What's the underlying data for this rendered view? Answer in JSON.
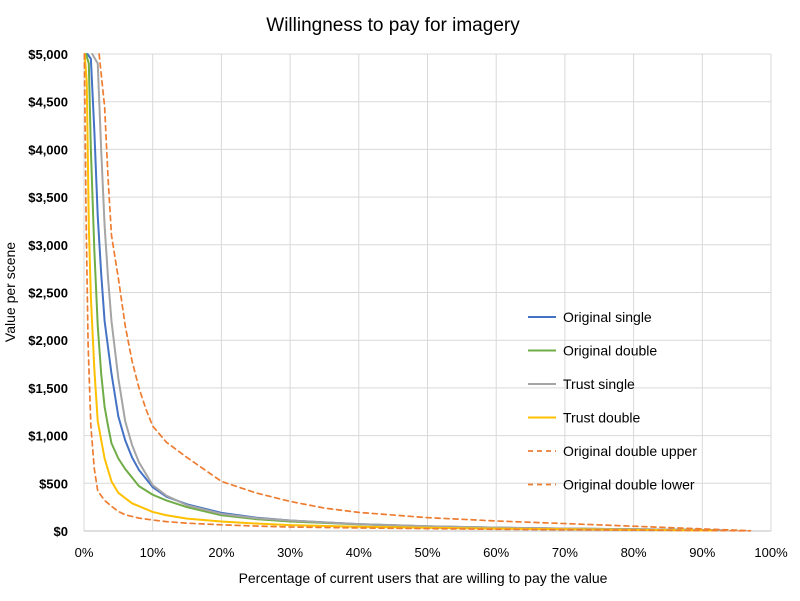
{
  "chart_data": {
    "type": "line",
    "title": "Willingness to pay for imagery",
    "xlabel": "Percentage of current users that are willing to pay the value",
    "ylabel": "Value per scene",
    "xlim": [
      0,
      100
    ],
    "ylim": [
      0,
      5000
    ],
    "x_ticks": [
      "0%",
      "10%",
      "20%",
      "30%",
      "40%",
      "50%",
      "60%",
      "70%",
      "80%",
      "90%",
      "100%"
    ],
    "y_ticks": [
      "$0",
      "$500",
      "$1,000",
      "$1,500",
      "$2,000",
      "$2,500",
      "$3,000",
      "$3,500",
      "$4,000",
      "$4,500",
      "$5,000"
    ],
    "grid": true,
    "legend_position": "right",
    "series": [
      {
        "name": "Original single",
        "color": "#4472C4",
        "dash": "solid",
        "points": [
          [
            0.5,
            5000
          ],
          [
            1,
            4950
          ],
          [
            1.5,
            4200
          ],
          [
            2,
            3300
          ],
          [
            2.5,
            2700
          ],
          [
            3,
            2200
          ],
          [
            4,
            1650
          ],
          [
            5,
            1200
          ],
          [
            6,
            950
          ],
          [
            7,
            770
          ],
          [
            8,
            640
          ],
          [
            10,
            460
          ],
          [
            12,
            360
          ],
          [
            15,
            280
          ],
          [
            20,
            190
          ],
          [
            25,
            140
          ],
          [
            30,
            110
          ],
          [
            35,
            90
          ],
          [
            40,
            72
          ],
          [
            50,
            48
          ],
          [
            60,
            35
          ],
          [
            70,
            25
          ],
          [
            80,
            18
          ],
          [
            90,
            10
          ],
          [
            92,
            6
          ]
        ]
      },
      {
        "name": "Original double",
        "color": "#70AD47",
        "dash": "solid",
        "points": [
          [
            0.3,
            5000
          ],
          [
            0.7,
            4900
          ],
          [
            1,
            4000
          ],
          [
            1.5,
            2950
          ],
          [
            2,
            2150
          ],
          [
            2.5,
            1650
          ],
          [
            3,
            1300
          ],
          [
            3.5,
            1100
          ],
          [
            4,
            920
          ],
          [
            5,
            760
          ],
          [
            6,
            650
          ],
          [
            8,
            470
          ],
          [
            10,
            380
          ],
          [
            12,
            320
          ],
          [
            15,
            250
          ],
          [
            20,
            165
          ],
          [
            25,
            125
          ],
          [
            30,
            100
          ],
          [
            35,
            85
          ],
          [
            40,
            70
          ],
          [
            50,
            48
          ],
          [
            60,
            35
          ],
          [
            70,
            25
          ],
          [
            80,
            18
          ],
          [
            90,
            10
          ],
          [
            92,
            6
          ]
        ]
      },
      {
        "name": "Trust single",
        "color": "#A5A5A5",
        "dash": "solid",
        "points": [
          [
            1.2,
            5000
          ],
          [
            2,
            4900
          ],
          [
            2.5,
            4000
          ],
          [
            3,
            3200
          ],
          [
            3.5,
            2650
          ],
          [
            4,
            2200
          ],
          [
            5,
            1600
          ],
          [
            6,
            1150
          ],
          [
            7,
            900
          ],
          [
            8,
            720
          ],
          [
            10,
            480
          ],
          [
            12,
            370
          ],
          [
            15,
            270
          ],
          [
            20,
            180
          ],
          [
            25,
            135
          ],
          [
            30,
            110
          ],
          [
            35,
            90
          ],
          [
            40,
            72
          ],
          [
            50,
            50
          ],
          [
            60,
            36
          ],
          [
            70,
            26
          ],
          [
            80,
            18
          ],
          [
            90,
            12
          ],
          [
            93,
            8
          ]
        ]
      },
      {
        "name": "Trust double",
        "color": "#FFC000",
        "dash": "solid",
        "points": [
          [
            0.1,
            5000
          ],
          [
            0.4,
            4700
          ],
          [
            0.7,
            3200
          ],
          [
            1,
            2450
          ],
          [
            1.5,
            1700
          ],
          [
            2,
            1150
          ],
          [
            3,
            760
          ],
          [
            4,
            520
          ],
          [
            5,
            400
          ],
          [
            7,
            290
          ],
          [
            10,
            200
          ],
          [
            12,
            165
          ],
          [
            15,
            130
          ],
          [
            20,
            100
          ],
          [
            25,
            78
          ],
          [
            30,
            62
          ],
          [
            40,
            45
          ],
          [
            50,
            34
          ],
          [
            60,
            25
          ],
          [
            70,
            18
          ],
          [
            80,
            12
          ],
          [
            90,
            7
          ],
          [
            92,
            5
          ]
        ]
      },
      {
        "name": "Original double upper",
        "color": "#ED7D31",
        "dash": "dashed",
        "points": [
          [
            2.2,
            5000
          ],
          [
            3,
            4450
          ],
          [
            3.5,
            3700
          ],
          [
            4,
            3100
          ],
          [
            5,
            2650
          ],
          [
            6,
            2150
          ],
          [
            7,
            1780
          ],
          [
            8,
            1500
          ],
          [
            9,
            1280
          ],
          [
            10,
            1100
          ],
          [
            12,
            930
          ],
          [
            15,
            770
          ],
          [
            20,
            520
          ],
          [
            25,
            400
          ],
          [
            30,
            310
          ],
          [
            35,
            240
          ],
          [
            40,
            195
          ],
          [
            50,
            140
          ],
          [
            60,
            105
          ],
          [
            70,
            78
          ],
          [
            80,
            50
          ],
          [
            90,
            22
          ],
          [
            97,
            3
          ]
        ]
      },
      {
        "name": "Original double lower",
        "color": "#ED7D31",
        "dash": "dashed",
        "points": [
          [
            0.05,
            5000
          ],
          [
            0.3,
            3300
          ],
          [
            0.6,
            1950
          ],
          [
            1,
            1100
          ],
          [
            1.5,
            650
          ],
          [
            2,
            420
          ],
          [
            3,
            320
          ],
          [
            4,
            260
          ],
          [
            5,
            205
          ],
          [
            6,
            170
          ],
          [
            8,
            135
          ],
          [
            10,
            115
          ],
          [
            12,
            98
          ],
          [
            15,
            82
          ],
          [
            20,
            65
          ],
          [
            25,
            52
          ],
          [
            30,
            42
          ],
          [
            40,
            32
          ],
          [
            50,
            25
          ],
          [
            60,
            18
          ],
          [
            70,
            13
          ],
          [
            80,
            9
          ],
          [
            90,
            5
          ],
          [
            97,
            2
          ]
        ]
      }
    ]
  }
}
